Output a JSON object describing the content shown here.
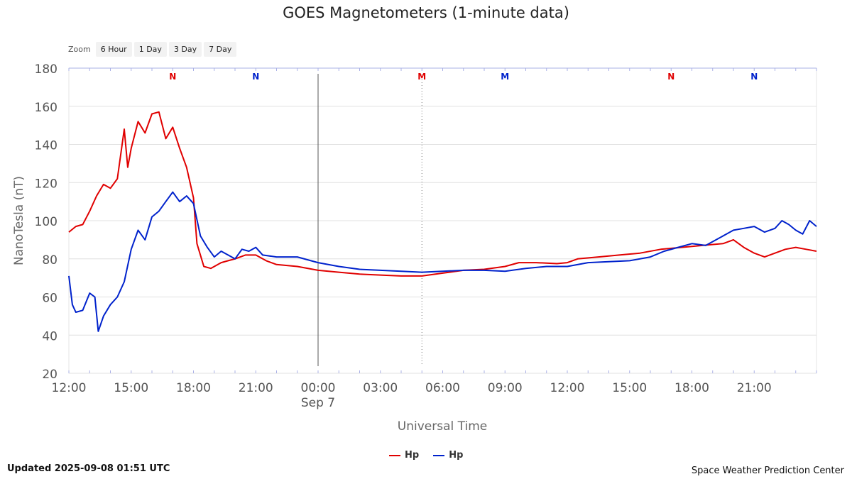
{
  "header": {
    "title": "GOES Magnetometers (1-minute data)"
  },
  "zoom": {
    "label": "Zoom",
    "buttons": [
      "6 Hour",
      "1 Day",
      "3 Day",
      "7 Day"
    ]
  },
  "footer": {
    "updated": "Updated 2025-09-08 01:51 UTC",
    "credit": "Space Weather Prediction Center"
  },
  "colors": {
    "red": "#e00000",
    "blue": "#0022cc",
    "grid": "#e0e0e0"
  },
  "chart_data": {
    "type": "line",
    "title": "GOES Magnetometers (1-minute data)",
    "xlabel": "Universal Time",
    "ylabel": "NanoTesla (nT)",
    "ylim": [
      20,
      180
    ],
    "yticks": [
      20,
      40,
      60,
      80,
      100,
      120,
      140,
      160,
      180
    ],
    "xlim": [
      "2025-09-06T12:00",
      "2025-09-07T24:00"
    ],
    "xticks": [
      {
        "t": "2025-09-06T12:00",
        "label": "12:00"
      },
      {
        "t": "2025-09-06T15:00",
        "label": "15:00"
      },
      {
        "t": "2025-09-06T18:00",
        "label": "18:00"
      },
      {
        "t": "2025-09-06T21:00",
        "label": "21:00"
      },
      {
        "t": "2025-09-07T00:00",
        "label": "00:00",
        "sublabel": "Sep 7"
      },
      {
        "t": "2025-09-07T03:00",
        "label": "03:00"
      },
      {
        "t": "2025-09-07T06:00",
        "label": "06:00"
      },
      {
        "t": "2025-09-07T09:00",
        "label": "09:00"
      },
      {
        "t": "2025-09-07T12:00",
        "label": "12:00"
      },
      {
        "t": "2025-09-07T15:00",
        "label": "15:00"
      },
      {
        "t": "2025-09-07T18:00",
        "label": "18:00"
      },
      {
        "t": "2025-09-07T21:00",
        "label": "21:00"
      }
    ],
    "grid": true,
    "legend_position": "bottom-center",
    "markers": [
      {
        "t": "2025-09-06T17:00",
        "label": "N",
        "color": "#e00000"
      },
      {
        "t": "2025-09-06T21:00",
        "label": "N",
        "color": "#0022cc"
      },
      {
        "t": "2025-09-07T05:00",
        "label": "M",
        "color": "#e00000"
      },
      {
        "t": "2025-09-07T09:00",
        "label": "M",
        "color": "#0022cc"
      },
      {
        "t": "2025-09-07T17:00",
        "label": "N",
        "color": "#e00000"
      },
      {
        "t": "2025-09-07T21:00",
        "label": "N",
        "color": "#0022cc"
      }
    ],
    "vlines": [
      {
        "t": "2025-09-07T00:00",
        "style": "solid"
      },
      {
        "t": "2025-09-07T05:00",
        "style": "dotted"
      }
    ],
    "series": [
      {
        "name": "Hp",
        "color": "#e00000",
        "points": [
          [
            "2025-09-06T12:00",
            94
          ],
          [
            "2025-09-06T12:20",
            97
          ],
          [
            "2025-09-06T12:40",
            98
          ],
          [
            "2025-09-06T13:00",
            105
          ],
          [
            "2025-09-06T13:20",
            113
          ],
          [
            "2025-09-06T13:40",
            119
          ],
          [
            "2025-09-06T14:00",
            117
          ],
          [
            "2025-09-06T14:20",
            122
          ],
          [
            "2025-09-06T14:40",
            148
          ],
          [
            "2025-09-06T14:50",
            128
          ],
          [
            "2025-09-06T15:00",
            138
          ],
          [
            "2025-09-06T15:20",
            152
          ],
          [
            "2025-09-06T15:40",
            146
          ],
          [
            "2025-09-06T16:00",
            156
          ],
          [
            "2025-09-06T16:20",
            157
          ],
          [
            "2025-09-06T16:40",
            143
          ],
          [
            "2025-09-06T17:00",
            149
          ],
          [
            "2025-09-06T17:20",
            138
          ],
          [
            "2025-09-06T17:40",
            128
          ],
          [
            "2025-09-06T18:00",
            112
          ],
          [
            "2025-09-06T18:10",
            88
          ],
          [
            "2025-09-06T18:30",
            76
          ],
          [
            "2025-09-06T18:50",
            75
          ],
          [
            "2025-09-06T19:20",
            78
          ],
          [
            "2025-09-06T19:40",
            79
          ],
          [
            "2025-09-06T20:00",
            80
          ],
          [
            "2025-09-06T20:30",
            82
          ],
          [
            "2025-09-06T21:00",
            82
          ],
          [
            "2025-09-06T21:30",
            79
          ],
          [
            "2025-09-06T22:00",
            77
          ],
          [
            "2025-09-06T23:00",
            76
          ],
          [
            "2025-09-07T00:00",
            74
          ],
          [
            "2025-09-07T01:00",
            73
          ],
          [
            "2025-09-07T02:00",
            72
          ],
          [
            "2025-09-07T03:00",
            71.5
          ],
          [
            "2025-09-07T04:00",
            71
          ],
          [
            "2025-09-07T05:00",
            71
          ],
          [
            "2025-09-07T06:00",
            72.5
          ],
          [
            "2025-09-07T07:00",
            74
          ],
          [
            "2025-09-07T08:00",
            74.5
          ],
          [
            "2025-09-07T09:00",
            76
          ],
          [
            "2025-09-07T09:40",
            78
          ],
          [
            "2025-09-07T10:30",
            78
          ],
          [
            "2025-09-07T11:30",
            77.5
          ],
          [
            "2025-09-07T12:00",
            78
          ],
          [
            "2025-09-07T12:30",
            80
          ],
          [
            "2025-09-07T13:30",
            81
          ],
          [
            "2025-09-07T14:30",
            82
          ],
          [
            "2025-09-07T15:30",
            83
          ],
          [
            "2025-09-07T16:30",
            85
          ],
          [
            "2025-09-07T17:30",
            86
          ],
          [
            "2025-09-07T18:30",
            87
          ],
          [
            "2025-09-07T19:30",
            88
          ],
          [
            "2025-09-07T20:00",
            90
          ],
          [
            "2025-09-07T20:30",
            86
          ],
          [
            "2025-09-07T21:00",
            83
          ],
          [
            "2025-09-07T21:30",
            81
          ],
          [
            "2025-09-07T22:00",
            83
          ],
          [
            "2025-09-07T22:30",
            85
          ],
          [
            "2025-09-07T23:00",
            86
          ],
          [
            "2025-09-07T23:30",
            85
          ],
          [
            "2025-09-07T24:00",
            84
          ]
        ]
      },
      {
        "name": "Hp",
        "color": "#0022cc",
        "points": [
          [
            "2025-09-06T12:00",
            71
          ],
          [
            "2025-09-06T12:10",
            56
          ],
          [
            "2025-09-06T12:20",
            52
          ],
          [
            "2025-09-06T12:40",
            53
          ],
          [
            "2025-09-06T13:00",
            62
          ],
          [
            "2025-09-06T13:15",
            60
          ],
          [
            "2025-09-06T13:25",
            42
          ],
          [
            "2025-09-06T13:40",
            50
          ],
          [
            "2025-09-06T14:00",
            56
          ],
          [
            "2025-09-06T14:20",
            60
          ],
          [
            "2025-09-06T14:40",
            68
          ],
          [
            "2025-09-06T15:00",
            85
          ],
          [
            "2025-09-06T15:20",
            95
          ],
          [
            "2025-09-06T15:40",
            90
          ],
          [
            "2025-09-06T16:00",
            102
          ],
          [
            "2025-09-06T16:20",
            105
          ],
          [
            "2025-09-06T16:40",
            110
          ],
          [
            "2025-09-06T17:00",
            115
          ],
          [
            "2025-09-06T17:20",
            110
          ],
          [
            "2025-09-06T17:40",
            113
          ],
          [
            "2025-09-06T18:00",
            109
          ],
          [
            "2025-09-06T18:20",
            92
          ],
          [
            "2025-09-06T18:40",
            86
          ],
          [
            "2025-09-06T19:00",
            81
          ],
          [
            "2025-09-06T19:20",
            84
          ],
          [
            "2025-09-06T19:40",
            82
          ],
          [
            "2025-09-06T20:00",
            80
          ],
          [
            "2025-09-06T20:20",
            85
          ],
          [
            "2025-09-06T20:40",
            84
          ],
          [
            "2025-09-06T21:00",
            86
          ],
          [
            "2025-09-06T21:20",
            82
          ],
          [
            "2025-09-06T22:00",
            81
          ],
          [
            "2025-09-06T23:00",
            81
          ],
          [
            "2025-09-07T00:00",
            78
          ],
          [
            "2025-09-07T01:00",
            76
          ],
          [
            "2025-09-07T02:00",
            74.5
          ],
          [
            "2025-09-07T03:00",
            74
          ],
          [
            "2025-09-07T04:00",
            73.5
          ],
          [
            "2025-09-07T05:00",
            73
          ],
          [
            "2025-09-07T06:00",
            73.5
          ],
          [
            "2025-09-07T07:00",
            74
          ],
          [
            "2025-09-07T08:00",
            74
          ],
          [
            "2025-09-07T09:00",
            73.5
          ],
          [
            "2025-09-07T10:00",
            75
          ],
          [
            "2025-09-07T11:00",
            76
          ],
          [
            "2025-09-07T12:00",
            76
          ],
          [
            "2025-09-07T13:00",
            78
          ],
          [
            "2025-09-07T14:00",
            78.5
          ],
          [
            "2025-09-07T15:00",
            79
          ],
          [
            "2025-09-07T16:00",
            81
          ],
          [
            "2025-09-07T16:40",
            84
          ],
          [
            "2025-09-07T17:20",
            86
          ],
          [
            "2025-09-07T18:00",
            88
          ],
          [
            "2025-09-07T18:40",
            87
          ],
          [
            "2025-09-07T19:10",
            90
          ],
          [
            "2025-09-07T19:40",
            93
          ],
          [
            "2025-09-07T20:00",
            95
          ],
          [
            "2025-09-07T20:30",
            96
          ],
          [
            "2025-09-07T21:00",
            97
          ],
          [
            "2025-09-07T21:30",
            94
          ],
          [
            "2025-09-07T22:00",
            96
          ],
          [
            "2025-09-07T22:20",
            100
          ],
          [
            "2025-09-07T22:40",
            98
          ],
          [
            "2025-09-07T23:00",
            95
          ],
          [
            "2025-09-07T23:20",
            93
          ],
          [
            "2025-09-07T23:40",
            100
          ],
          [
            "2025-09-07T24:00",
            97
          ]
        ]
      }
    ]
  }
}
